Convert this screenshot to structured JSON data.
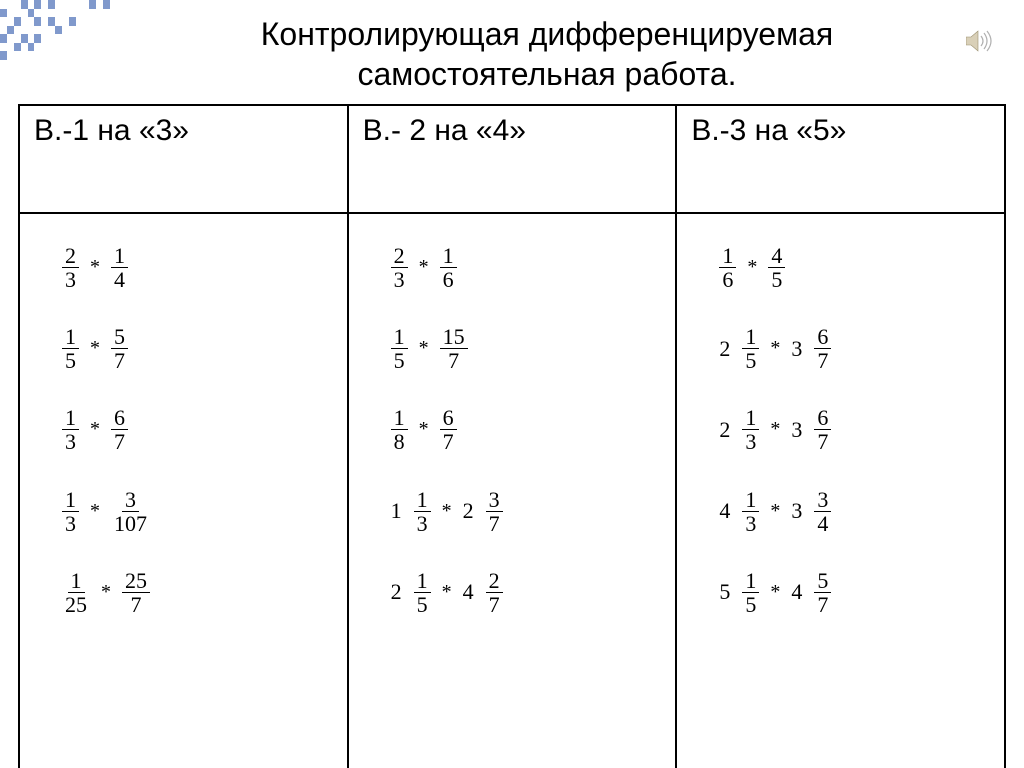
{
  "title_line1": "Контролирующая дифференцируемая",
  "title_line2": "самостоятельная работа.",
  "columns": [
    {
      "header": "В.-1 на «3»"
    },
    {
      "header": "В.- 2 на «4»"
    },
    {
      "header": "В.-3 на «5»"
    }
  ],
  "col1": [
    {
      "a": {
        "n": "2",
        "d": "3"
      },
      "b": {
        "n": "1",
        "d": "4"
      }
    },
    {
      "a": {
        "n": "1",
        "d": "5"
      },
      "b": {
        "n": "5",
        "d": "7"
      }
    },
    {
      "a": {
        "n": "1",
        "d": "3"
      },
      "b": {
        "n": "6",
        "d": "7"
      }
    },
    {
      "a": {
        "n": "1",
        "d": "3"
      },
      "b": {
        "n": "3",
        "d": "107"
      }
    },
    {
      "a": {
        "n": "1",
        "d": "25"
      },
      "b": {
        "n": "25",
        "d": "7"
      }
    }
  ],
  "col2": [
    {
      "a": {
        "n": "2",
        "d": "3"
      },
      "b": {
        "n": "1",
        "d": "6"
      }
    },
    {
      "a": {
        "n": "1",
        "d": "5"
      },
      "b": {
        "n": "15",
        "d": "7"
      }
    },
    {
      "a": {
        "n": "1",
        "d": "8"
      },
      "b": {
        "n": "6",
        "d": "7"
      }
    },
    {
      "a": {
        "w": "1",
        "n": "1",
        "d": "3"
      },
      "b": {
        "w": "2",
        "n": "3",
        "d": "7"
      }
    },
    {
      "a": {
        "w": "2",
        "n": "1",
        "d": "5"
      },
      "b": {
        "w": "4",
        "n": "2",
        "d": "7"
      }
    }
  ],
  "col3": [
    {
      "a": {
        "n": "1",
        "d": "6"
      },
      "b": {
        "n": "4",
        "d": "5"
      }
    },
    {
      "a": {
        "w": "2",
        "n": "1",
        "d": "5"
      },
      "b": {
        "w": "3",
        "n": "6",
        "d": "7"
      }
    },
    {
      "a": {
        "w": "2",
        "n": "1",
        "d": "3"
      },
      "b": {
        "w": "3",
        "n": "6",
        "d": "7"
      }
    },
    {
      "a": {
        "w": "4",
        "n": "1",
        "d": "3"
      },
      "b": {
        "w": "3",
        "n": "3",
        "d": "4"
      }
    },
    {
      "a": {
        "w": "5",
        "n": "1",
        "d": "5"
      },
      "b": {
        "w": "4",
        "n": "5",
        "d": "7"
      }
    }
  ],
  "colors": {
    "deco": "#8099cc",
    "border": "#000000",
    "text": "#000000",
    "bg": "#ffffff"
  },
  "deco_cells": [
    [
      0,
      3
    ],
    [
      0,
      5
    ],
    [
      0,
      7
    ],
    [
      0,
      13
    ],
    [
      0,
      15
    ],
    [
      1,
      0
    ],
    [
      1,
      4
    ],
    [
      2,
      2
    ],
    [
      2,
      5
    ],
    [
      2,
      7
    ],
    [
      2,
      10
    ],
    [
      3,
      1
    ],
    [
      3,
      8
    ],
    [
      4,
      0
    ],
    [
      4,
      3
    ],
    [
      4,
      5
    ],
    [
      5,
      2
    ],
    [
      5,
      4
    ],
    [
      6,
      0
    ]
  ]
}
